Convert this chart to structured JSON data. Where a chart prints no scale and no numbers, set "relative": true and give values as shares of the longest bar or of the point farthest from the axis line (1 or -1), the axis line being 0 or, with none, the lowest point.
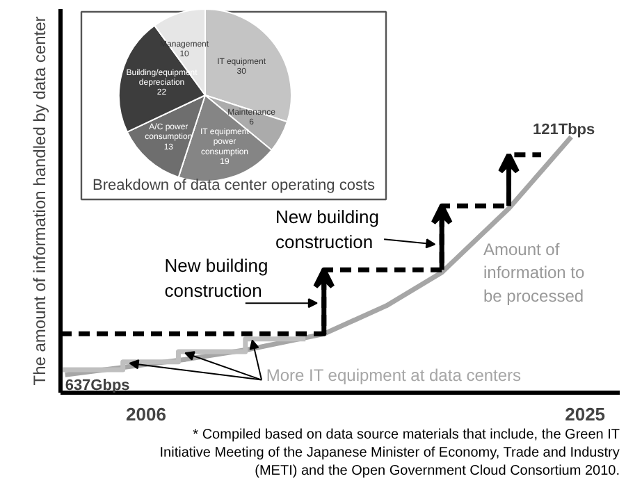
{
  "chart_data": [
    {
      "type": "line",
      "relative": true,
      "ylabel": "The amount of information handled by data center",
      "xlim": [
        2002.3,
        2026.5
      ],
      "xticks": [
        2006,
        2025
      ],
      "grid": false,
      "series": [
        {
          "color": "#a6a6a6",
          "x": [
            2002.5,
            2007.7,
            2010.5,
            2013.7,
            2016.4,
            2018.8,
            2021.7,
            2024.4
          ],
          "values": [
            0.07,
            0.13,
            0.17,
            0.23,
            0.34,
            0.47,
            0.72,
            1
          ]
        },
        {
          "type": "step",
          "color": "#000000",
          "line_style": "dashed",
          "x": [
            2002.3,
            2013.7,
            2018.8,
            2021.7,
            2023.1
          ],
          "values": [
            0.23,
            0.48,
            0.73,
            0.93,
            0.93
          ]
        },
        {
          "type": "step",
          "color": "#bfbfbf",
          "x": [
            2002.4,
            2005.0,
            2007.4,
            2010.3,
            2012.9
          ],
          "values": [
            0.09,
            0.12,
            0.16,
            0.21,
            0.21
          ]
        }
      ],
      "annotations": [
        {
          "text": "637Gbps",
          "x": 2002.5,
          "y": 0.07
        },
        {
          "text": "121Tbps",
          "x": 2023.1,
          "y": 0.93
        },
        "New building construction",
        "New building construction",
        "Amount of information to be processed",
        "More IT equipment at data centers",
        "* Compiled based on data source materials that include, the Green IT Initiative Meeting of the Japanese Minister of Economy, Trade and Industry (METI) and the Open Government Cloud Consortium 2010."
      ]
    },
    {
      "type": "pie",
      "title": "Breakdown of data center operating costs",
      "data_labels": true,
      "categories": [
        "IT equipment",
        "Maintenance",
        "IT equipment power consumption",
        "A/C power consumption",
        "Building/equipment depreciation",
        "Management"
      ],
      "values": [
        30,
        6,
        19,
        13,
        22,
        10
      ],
      "colors": [
        "#c4c4c4",
        "#ababab",
        "#858585",
        "#6e6e6e",
        "#3d3d3d",
        "#e6e6e6"
      ]
    }
  ]
}
